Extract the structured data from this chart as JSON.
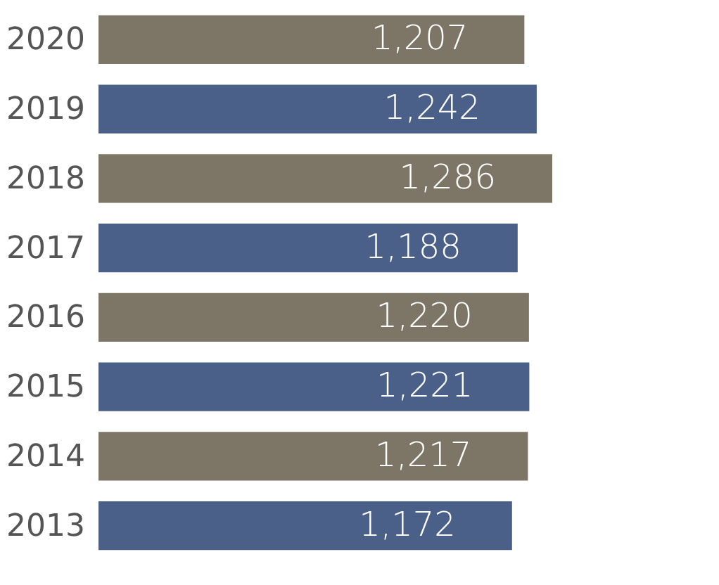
{
  "chart_data": {
    "type": "bar",
    "orientation": "horizontal",
    "categories": [
      "2020",
      "2019",
      "2018",
      "2017",
      "2016",
      "2015",
      "2014",
      "2013"
    ],
    "values": [
      1207,
      1242,
      1286,
      1188,
      1220,
      1221,
      1217,
      1172
    ],
    "value_labels": [
      "1,207",
      "1,242",
      "1,286",
      "1,188",
      "1,220",
      "1,221",
      "1,217",
      "1,172"
    ],
    "colors": [
      "#7d7566",
      "#4a6089",
      "#7d7566",
      "#4a6089",
      "#7d7566",
      "#4a6089",
      "#7d7566",
      "#4a6089"
    ]
  }
}
